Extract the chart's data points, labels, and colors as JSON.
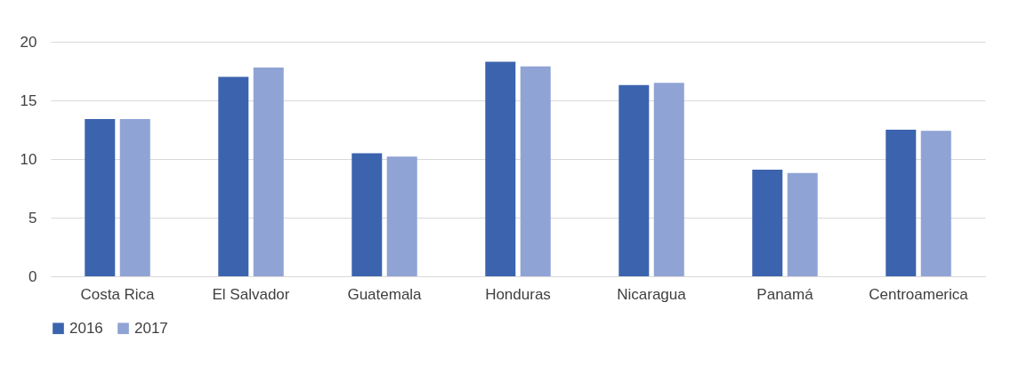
{
  "chart_data": {
    "type": "bar",
    "categories": [
      "Costa Rica",
      "El Salvador",
      "Guatemala",
      "Honduras",
      "Nicaragua",
      "Panamá",
      "Centroamerica"
    ],
    "series": [
      {
        "name": "2016",
        "color": "#3c64ae",
        "values": [
          13.4,
          17.0,
          10.5,
          18.3,
          16.3,
          9.1,
          12.5
        ]
      },
      {
        "name": "2017",
        "color": "#8fa3d4",
        "values": [
          13.4,
          17.8,
          10.2,
          17.9,
          16.5,
          8.8,
          12.4
        ]
      }
    ],
    "ylim": [
      0,
      20
    ],
    "yticks": [
      0,
      5,
      10,
      15,
      20
    ],
    "grid": "y",
    "legend": "bottom"
  }
}
